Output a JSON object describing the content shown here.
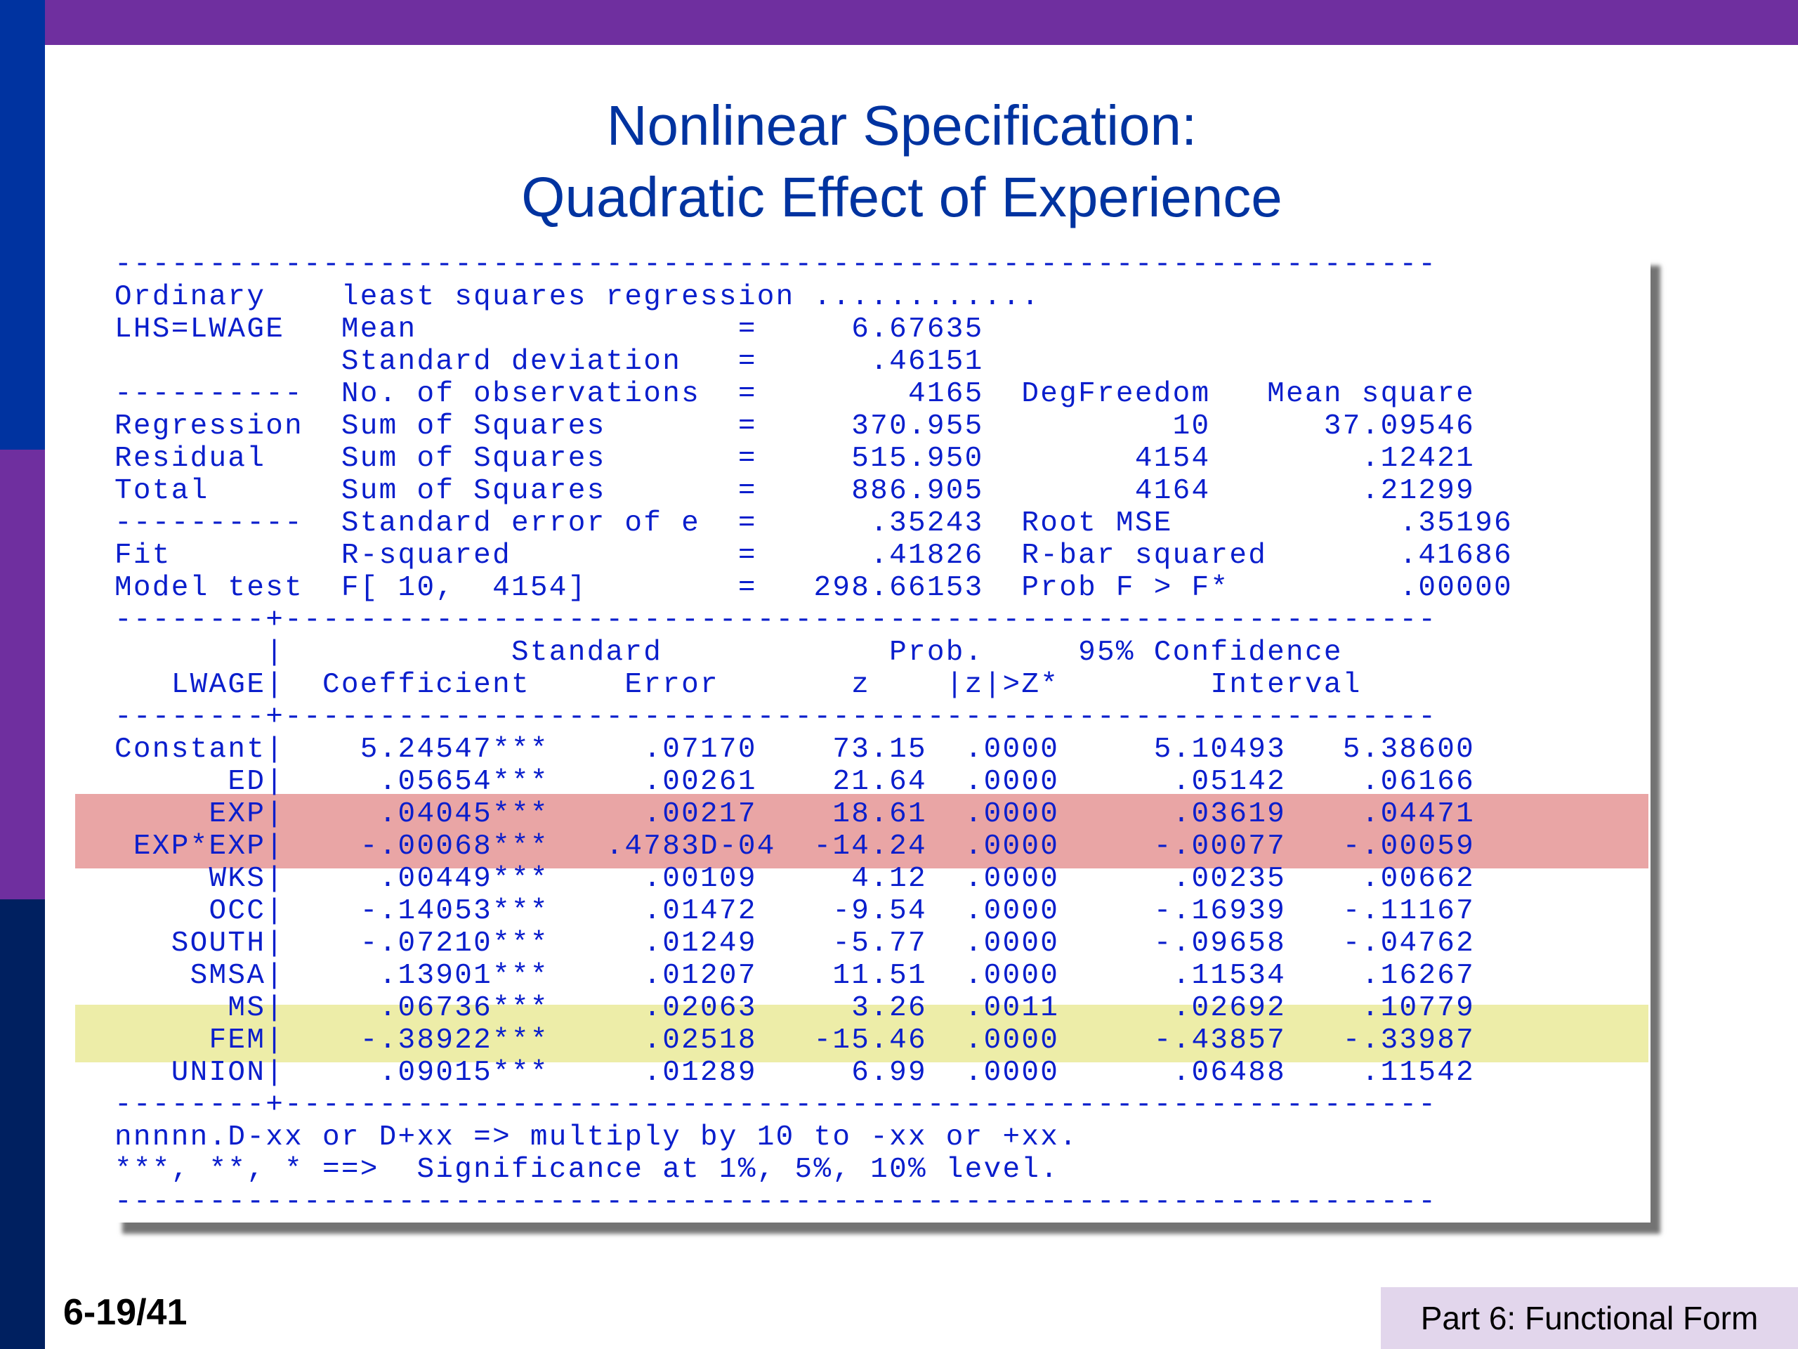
{
  "slide": {
    "title_line1": "Nonlinear Specification:",
    "title_line2": "Quadratic Effect of Experience",
    "page_number": "6-19/41",
    "footer_label": "Part 6: Functional Form",
    "colors": {
      "title": "#0033a0",
      "top_bar": "#6f2f9f",
      "output_text": "#0a1ecc",
      "highlight_red": "#e9a5a5",
      "highlight_yellow": "#ededa8",
      "footer_bg": "#e2d6ec"
    }
  },
  "regression_output": {
    "lines": [
      "----------------------------------------------------------------------",
      "Ordinary    least squares regression ............",
      "LHS=LWAGE   Mean                 =     6.67635",
      "            Standard deviation   =      .46151",
      "----------  No. of observations  =        4165  DegFreedom   Mean square",
      "Regression  Sum of Squares       =     370.955          10      37.09546",
      "Residual    Sum of Squares       =     515.950        4154        .12421",
      "Total       Sum of Squares       =     886.905        4164        .21299",
      "----------  Standard error of e  =      .35243  Root MSE            .35196",
      "Fit         R-squared            =      .41826  R-bar squared       .41686",
      "Model test  F[ 10,  4154]        =   298.66153  Prob F > F*         .00000",
      "--------+-------------------------------------------------------------",
      "        |            Standard            Prob.     95% Confidence",
      "   LWAGE|  Coefficient     Error       z    |z|>Z*        Interval",
      "--------+-------------------------------------------------------------",
      "Constant|    5.24547***     .07170    73.15  .0000     5.10493   5.38600",
      "      ED|     .05654***     .00261    21.64  .0000      .05142    .06166",
      "     EXP|     .04045***     .00217    18.61  .0000      .03619    .04471",
      " EXP*EXP|    -.00068***   .4783D-04  -14.24  .0000     -.00077   -.00059",
      "     WKS|     .00449***     .00109     4.12  .0000      .00235    .00662",
      "     OCC|    -.14053***     .01472    -9.54  .0000     -.16939   -.11167",
      "   SOUTH|    -.07210***     .01249    -5.77  .0000     -.09658   -.04762",
      "    SMSA|     .13901***     .01207    11.51  .0000      .11534    .16267",
      "      MS|     .06736***     .02063     3.26  .0011      .02692    .10779",
      "     FEM|    -.38922***     .02518   -15.46  .0000     -.43857   -.33987",
      "   UNION|     .09015***     .01289     6.99  .0000      .06488    .11542",
      "--------+-------------------------------------------------------------",
      "nnnnn.D-xx or D+xx => multiply by 10 to -xx or +xx.",
      "***, **, * ==>  Significance at 1%, 5%, 10% level.",
      "----------------------------------------------------------------------"
    ]
  }
}
